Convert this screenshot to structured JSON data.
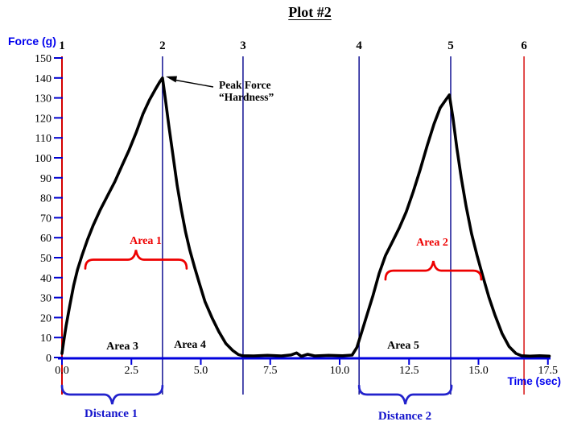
{
  "title": "Plot #2",
  "y_axis": {
    "label": "Force (g)",
    "ticks": [
      0,
      10,
      20,
      30,
      40,
      50,
      60,
      70,
      80,
      90,
      100,
      110,
      120,
      130,
      140,
      150
    ]
  },
  "x_axis": {
    "label": "Time (sec)",
    "tick_values": [
      0,
      2.5,
      5,
      7.5,
      10,
      12.5,
      15,
      17.5
    ],
    "tick_labels": [
      "0.0",
      "2.5",
      "5.0",
      "7.5",
      "10.0",
      "12.5",
      "15.0",
      "17.5"
    ]
  },
  "event_markers": [
    {
      "label": "1",
      "t": 0,
      "color_key": "event_line_red"
    },
    {
      "label": "2",
      "t": 3.62,
      "color_key": "event_line_blue"
    },
    {
      "label": "3",
      "t": 6.52,
      "color_key": "event_line_blue"
    },
    {
      "label": "4",
      "t": 10.7,
      "color_key": "event_line_blue"
    },
    {
      "label": "5",
      "t": 14.0,
      "color_key": "event_line_blue"
    },
    {
      "label": "6",
      "t": 16.64,
      "color_key": "event_line_red"
    }
  ],
  "annotations": {
    "peak_force_line1": "Peak Force",
    "peak_force_line2": "“Hardness”",
    "area1": "Area 1",
    "area2": "Area 2",
    "area3": "Area 3",
    "area4": "Area 4",
    "area5": "Area 5",
    "distance1": "Distance 1",
    "distance2": "Distance 2"
  },
  "colors": {
    "curve": "#000000",
    "x_axis": "#0000dd",
    "tick_blue": "#0000cc",
    "event_line_blue": "#00008b",
    "event_line_red": "#d40000",
    "red_brace": "#ee0000",
    "blue_brace": "#2222cc"
  },
  "chart_data": {
    "type": "line",
    "title": "Plot #2",
    "xlabel": "Time (sec)",
    "ylabel": "Force (g)",
    "xlim": [
      0,
      17.5
    ],
    "ylim": [
      0,
      150
    ],
    "grid": false,
    "peak1": {
      "t": 3.62,
      "force": 140,
      "label": "Peak Force “Hardness”"
    },
    "peak2": {
      "t": 13.95,
      "force": 131.5
    },
    "series": [
      {
        "name": "force",
        "points": [
          [
            0,
            2
          ],
          [
            0.06,
            8
          ],
          [
            0.15,
            16
          ],
          [
            0.28,
            26
          ],
          [
            0.42,
            36
          ],
          [
            0.56,
            44
          ],
          [
            0.72,
            51
          ],
          [
            0.92,
            59
          ],
          [
            1.12,
            66
          ],
          [
            1.38,
            74
          ],
          [
            1.64,
            81
          ],
          [
            1.9,
            88
          ],
          [
            2.16,
            96
          ],
          [
            2.42,
            104
          ],
          [
            2.68,
            113
          ],
          [
            2.92,
            122
          ],
          [
            3.15,
            129
          ],
          [
            3.35,
            134
          ],
          [
            3.52,
            138
          ],
          [
            3.62,
            140
          ],
          [
            3.72,
            130
          ],
          [
            3.85,
            116
          ],
          [
            4.0,
            101
          ],
          [
            4.15,
            86
          ],
          [
            4.3,
            74
          ],
          [
            4.45,
            63
          ],
          [
            4.6,
            54
          ],
          [
            4.78,
            45
          ],
          [
            4.95,
            37
          ],
          [
            5.15,
            28
          ],
          [
            5.4,
            20
          ],
          [
            5.65,
            13
          ],
          [
            5.9,
            7
          ],
          [
            6.15,
            3.5
          ],
          [
            6.35,
            1.5
          ],
          [
            6.5,
            0.9
          ],
          [
            6.9,
            0.8
          ],
          [
            7.4,
            1.1
          ],
          [
            7.9,
            0.8
          ],
          [
            8.25,
            1.3
          ],
          [
            8.45,
            2.3
          ],
          [
            8.62,
            0.6
          ],
          [
            8.85,
            1.6
          ],
          [
            9.1,
            0.8
          ],
          [
            9.6,
            1.1
          ],
          [
            10.1,
            0.9
          ],
          [
            10.45,
            1.2
          ],
          [
            10.62,
            5
          ],
          [
            10.8,
            13
          ],
          [
            11.0,
            22
          ],
          [
            11.2,
            31
          ],
          [
            11.42,
            42
          ],
          [
            11.65,
            51
          ],
          [
            11.9,
            58
          ],
          [
            12.15,
            65
          ],
          [
            12.4,
            73
          ],
          [
            12.65,
            83
          ],
          [
            12.9,
            94
          ],
          [
            13.15,
            106
          ],
          [
            13.4,
            117
          ],
          [
            13.62,
            125
          ],
          [
            13.82,
            129
          ],
          [
            13.95,
            131.5
          ],
          [
            14.08,
            120
          ],
          [
            14.22,
            105
          ],
          [
            14.38,
            90
          ],
          [
            14.55,
            76
          ],
          [
            14.75,
            62
          ],
          [
            14.95,
            51
          ],
          [
            15.15,
            41
          ],
          [
            15.38,
            30
          ],
          [
            15.6,
            21
          ],
          [
            15.85,
            12
          ],
          [
            16.1,
            5.5
          ],
          [
            16.35,
            2
          ],
          [
            16.55,
            0.9
          ],
          [
            16.85,
            0.7
          ],
          [
            17.2,
            0.9
          ],
          [
            17.55,
            0.7
          ]
        ]
      }
    ],
    "braces": [
      {
        "name": "area1-brace",
        "kind": "area",
        "t1": 0.84,
        "t2": 4.49,
        "g": 49,
        "cusp": "up"
      },
      {
        "name": "area2-brace",
        "kind": "area",
        "t1": 11.65,
        "t2": 15.1,
        "g": 43.5,
        "cusp": "up"
      },
      {
        "name": "distance1-brace",
        "kind": "distance",
        "t1": 0,
        "t2": 3.62,
        "cusp": "down"
      },
      {
        "name": "distance2-brace",
        "kind": "distance",
        "t1": 10.7,
        "t2": 14.03,
        "cusp": "down"
      }
    ]
  }
}
